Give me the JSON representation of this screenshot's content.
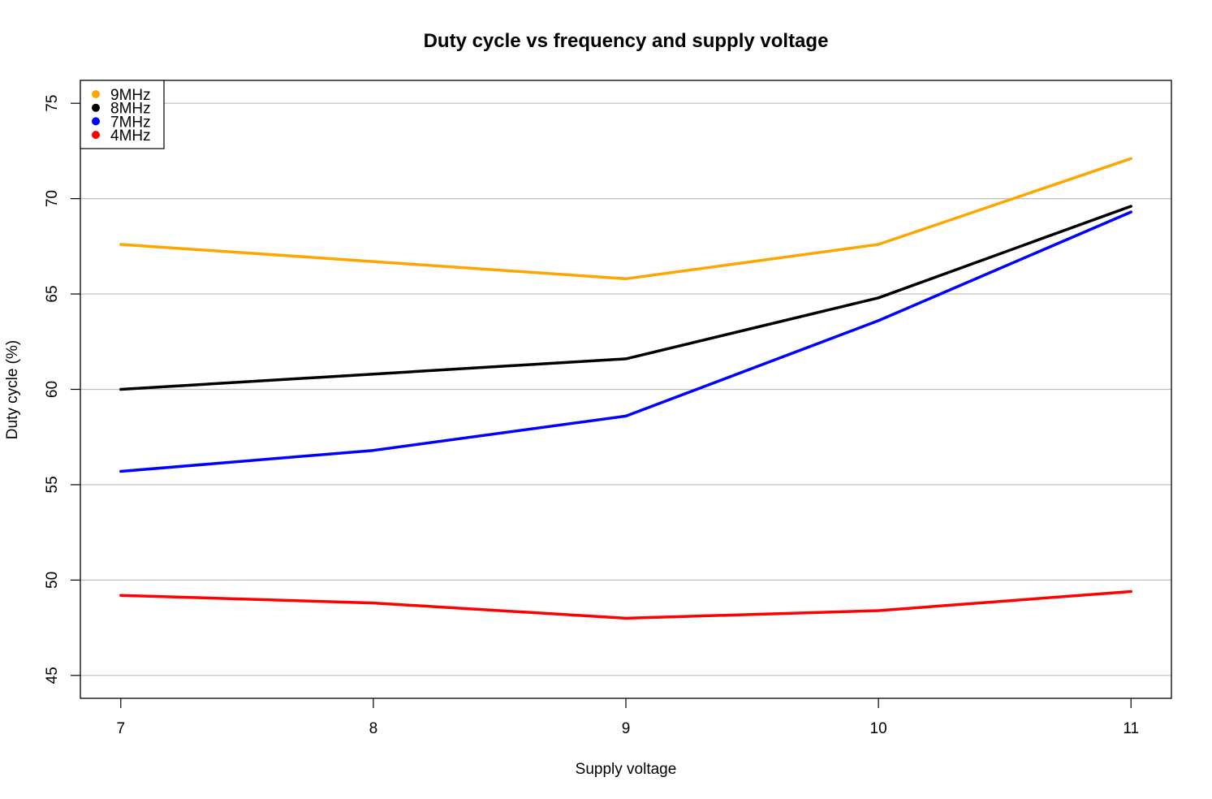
{
  "chart_data": {
    "type": "line",
    "title": "Duty cycle vs frequency and supply voltage",
    "xlabel": "Supply voltage",
    "ylabel": "Duty cycle (%)",
    "x": [
      7,
      8,
      9,
      10,
      11
    ],
    "xticks": [
      "7",
      "8",
      "9",
      "10",
      "11"
    ],
    "yticks": [
      "45",
      "50",
      "55",
      "60",
      "65",
      "70",
      "75"
    ],
    "xlim": [
      6.84,
      11.16
    ],
    "ylim": [
      43.8,
      76.2
    ],
    "grid": "horizontal",
    "legend_position": "top-left",
    "series": [
      {
        "name": "9MHz",
        "color": "#FFA500",
        "values": [
          67.6,
          66.7,
          65.8,
          67.6,
          72.1
        ]
      },
      {
        "name": "8MHz",
        "color": "#000000",
        "values": [
          60.0,
          60.8,
          61.6,
          64.8,
          69.6
        ]
      },
      {
        "name": "7MHz",
        "color": "#0000FF",
        "values": [
          55.7,
          56.8,
          58.6,
          63.6,
          69.3
        ]
      },
      {
        "name": "4MHz",
        "color": "#FF0000",
        "values": [
          49.2,
          48.8,
          48.0,
          48.4,
          49.4
        ]
      }
    ]
  }
}
